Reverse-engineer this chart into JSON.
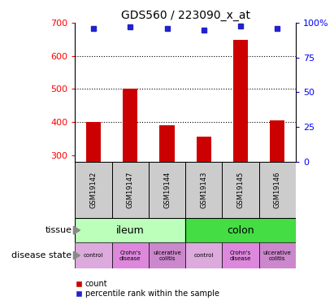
{
  "title": "GDS560 / 223090_x_at",
  "samples": [
    "GSM19142",
    "GSM19147",
    "GSM19144",
    "GSM19143",
    "GSM19145",
    "GSM19146"
  ],
  "counts": [
    400,
    500,
    390,
    355,
    648,
    405
  ],
  "percentiles": [
    96,
    97,
    96,
    95,
    98,
    96
  ],
  "ymin": 280,
  "ymax": 700,
  "yticks": [
    300,
    400,
    500,
    600,
    700
  ],
  "pct_ticks": [
    0,
    25,
    50,
    75,
    100
  ],
  "pct_tick_labels": [
    "0",
    "25",
    "50",
    "75",
    "100%"
  ],
  "bar_color": "#cc0000",
  "dot_color": "#2222cc",
  "tissue_ileum_color": "#bbffbb",
  "tissue_colon_color": "#44dd44",
  "disease_colors_all": [
    "#ddaadd",
    "#dd88dd",
    "#cc88cc",
    "#ddaadd",
    "#dd88dd",
    "#cc88cc"
  ],
  "disease_labels": [
    "control",
    "Crohn's\ndisease",
    "ulcerative\ncolitis"
  ],
  "bg_color": "#ffffff",
  "label_row_color": "#cccccc"
}
